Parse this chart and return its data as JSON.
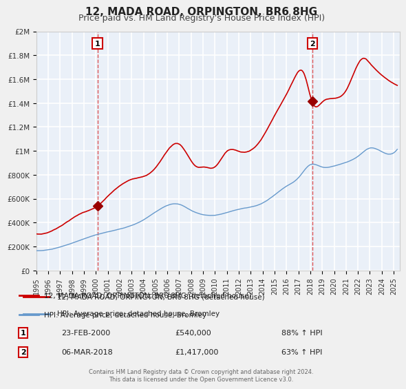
{
  "title": "12, MADA ROAD, ORPINGTON, BR6 8HG",
  "subtitle": "Price paid vs. HM Land Registry's House Price Index (HPI)",
  "bg_color": "#e8eef8",
  "plot_bg_color": "#eaf0f8",
  "grid_color": "#ffffff",
  "red_line_color": "#cc0000",
  "blue_line_color": "#6699cc",
  "marker_color": "#990000",
  "dashed_line_color": "#dd4444",
  "xlim": [
    1995.0,
    2025.5
  ],
  "ylim": [
    0,
    2000000
  ],
  "yticks": [
    0,
    200000,
    400000,
    600000,
    800000,
    1000000,
    1200000,
    1400000,
    1600000,
    1800000,
    2000000
  ],
  "ytick_labels": [
    "£0",
    "£200K",
    "£400K",
    "£600K",
    "£800K",
    "£1M",
    "£1.2M",
    "£1.4M",
    "£1.6M",
    "£1.8M",
    "£2M"
  ],
  "xticks": [
    1995,
    1996,
    1997,
    1998,
    1999,
    2000,
    2001,
    2002,
    2003,
    2004,
    2005,
    2006,
    2007,
    2008,
    2009,
    2010,
    2011,
    2012,
    2013,
    2014,
    2015,
    2016,
    2017,
    2018,
    2019,
    2020,
    2021,
    2022,
    2023,
    2024,
    2025
  ],
  "transaction1_year": 2000.14,
  "transaction1_price": 540000,
  "transaction1_label": "1",
  "transaction1_date": "23-FEB-2000",
  "transaction1_hpi": "88% ↑ HPI",
  "transaction2_year": 2018.17,
  "transaction2_price": 1417000,
  "transaction2_label": "2",
  "transaction2_date": "06-MAR-2018",
  "transaction2_hpi": "63% ↑ HPI",
  "legend_line1": "12, MADA ROAD, ORPINGTON, BR6 8HG (detached house)",
  "legend_line2": "HPI: Average price, detached house, Bromley",
  "footer": "Contains HM Land Registry data © Crown copyright and database right 2024.\nThis data is licensed under the Open Government Licence v3.0.",
  "title_fontsize": 11,
  "subtitle_fontsize": 9
}
